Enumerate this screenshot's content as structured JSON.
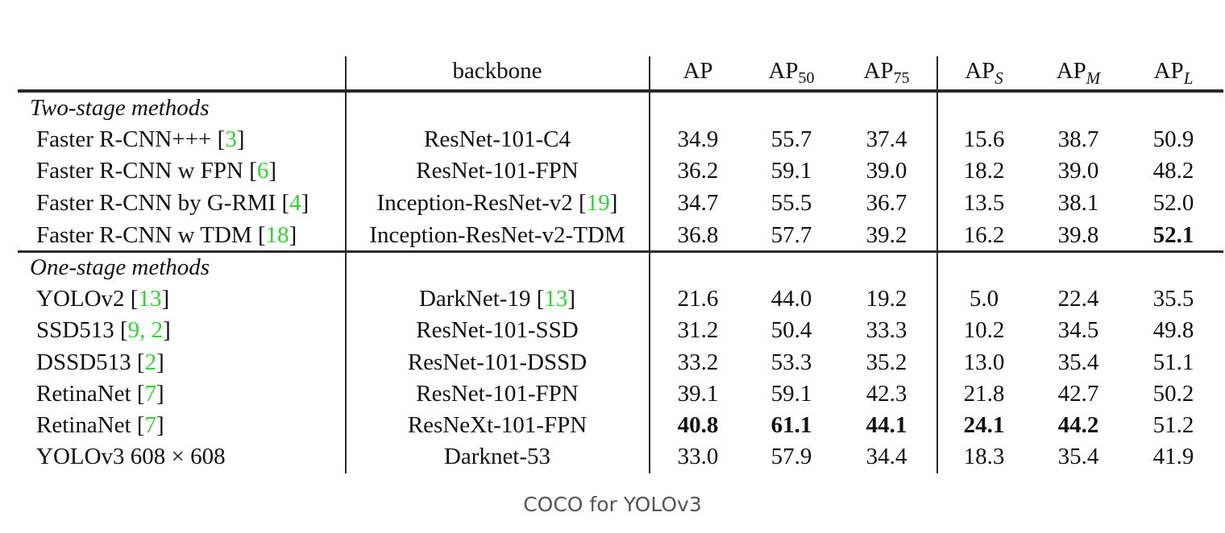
{
  "table": {
    "columns": [
      {
        "key": "method",
        "label": ""
      },
      {
        "key": "backbone",
        "label": "backbone"
      },
      {
        "key": "ap",
        "label": "AP",
        "sub": ""
      },
      {
        "key": "ap50",
        "label": "AP",
        "sub": "50"
      },
      {
        "key": "ap75",
        "label": "AP",
        "sub": "75"
      },
      {
        "key": "aps",
        "label": "AP",
        "sub": "S"
      },
      {
        "key": "apm",
        "label": "AP",
        "sub": "M"
      },
      {
        "key": "apl",
        "label": "AP",
        "sub": "L"
      }
    ],
    "groups": [
      {
        "title": "Two-stage methods",
        "rows": [
          {
            "method": "Faster R-CNN+++ ",
            "method_ref": "3",
            "backbone": "ResNet-101-C4",
            "backbone_ref": "",
            "values": [
              "34.9",
              "55.7",
              "37.4",
              "15.6",
              "38.7",
              "50.9"
            ],
            "bold": [
              false,
              false,
              false,
              false,
              false,
              false
            ]
          },
          {
            "method": "Faster R-CNN w FPN ",
            "method_ref": "6",
            "backbone": "ResNet-101-FPN",
            "backbone_ref": "",
            "values": [
              "36.2",
              "59.1",
              "39.0",
              "18.2",
              "39.0",
              "48.2"
            ],
            "bold": [
              false,
              false,
              false,
              false,
              false,
              false
            ]
          },
          {
            "method": "Faster R-CNN by G-RMI ",
            "method_ref": "4",
            "backbone": "Inception-ResNet-v2 ",
            "backbone_ref": "19",
            "values": [
              "34.7",
              "55.5",
              "36.7",
              "13.5",
              "38.1",
              "52.0"
            ],
            "bold": [
              false,
              false,
              false,
              false,
              false,
              false
            ]
          },
          {
            "method": "Faster R-CNN w TDM ",
            "method_ref": "18",
            "backbone": "Inception-ResNet-v2-TDM",
            "backbone_ref": "",
            "values": [
              "36.8",
              "57.7",
              "39.2",
              "16.2",
              "39.8",
              "52.1"
            ],
            "bold": [
              false,
              false,
              false,
              false,
              false,
              true
            ]
          }
        ]
      },
      {
        "title": "One-stage methods",
        "rows": [
          {
            "method": "YOLOv2 ",
            "method_ref": "13",
            "backbone": "DarkNet-19 ",
            "backbone_ref": "13",
            "values": [
              "21.6",
              "44.0",
              "19.2",
              "5.0",
              "22.4",
              "35.5"
            ],
            "bold": [
              false,
              false,
              false,
              false,
              false,
              false
            ]
          },
          {
            "method": "SSD513 ",
            "method_ref": "9, 2",
            "backbone": "ResNet-101-SSD",
            "backbone_ref": "",
            "values": [
              "31.2",
              "50.4",
              "33.3",
              "10.2",
              "34.5",
              "49.8"
            ],
            "bold": [
              false,
              false,
              false,
              false,
              false,
              false
            ]
          },
          {
            "method": "DSSD513 ",
            "method_ref": "2",
            "backbone": "ResNet-101-DSSD",
            "backbone_ref": "",
            "values": [
              "33.2",
              "53.3",
              "35.2",
              "13.0",
              "35.4",
              "51.1"
            ],
            "bold": [
              false,
              false,
              false,
              false,
              false,
              false
            ]
          },
          {
            "method": "RetinaNet ",
            "method_ref": "7",
            "backbone": "ResNet-101-FPN",
            "backbone_ref": "",
            "values": [
              "39.1",
              "59.1",
              "42.3",
              "21.8",
              "42.7",
              "50.2"
            ],
            "bold": [
              false,
              false,
              false,
              false,
              false,
              false
            ]
          },
          {
            "method": "RetinaNet ",
            "method_ref": "7",
            "backbone": "ResNeXt-101-FPN",
            "backbone_ref": "",
            "values": [
              "40.8",
              "61.1",
              "44.1",
              "24.1",
              "44.2",
              "51.2"
            ],
            "bold": [
              true,
              true,
              true,
              true,
              true,
              false
            ]
          },
          {
            "method": "YOLOv3 608 × 608",
            "method_ref": "",
            "backbone": "Darknet-53",
            "backbone_ref": "",
            "values": [
              "33.0",
              "57.9",
              "34.4",
              "18.3",
              "35.4",
              "41.9"
            ],
            "bold": [
              false,
              false,
              false,
              false,
              false,
              false
            ]
          }
        ]
      }
    ]
  },
  "caption": "COCO for YOLOv3",
  "colors": {
    "reference": "#2fd62f",
    "text": "#111111",
    "caption": "#555555"
  },
  "chart_data": {
    "type": "table",
    "title": "COCO for YOLOv3",
    "columns": [
      "method",
      "backbone",
      "AP",
      "AP50",
      "AP75",
      "APS",
      "APM",
      "APL"
    ],
    "rows": [
      [
        "Faster R-CNN+++ [3]",
        "ResNet-101-C4",
        34.9,
        55.7,
        37.4,
        15.6,
        38.7,
        50.9
      ],
      [
        "Faster R-CNN w FPN [6]",
        "ResNet-101-FPN",
        36.2,
        59.1,
        39.0,
        18.2,
        39.0,
        48.2
      ],
      [
        "Faster R-CNN by G-RMI [4]",
        "Inception-ResNet-v2 [19]",
        34.7,
        55.5,
        36.7,
        13.5,
        38.1,
        52.0
      ],
      [
        "Faster R-CNN w TDM [18]",
        "Inception-ResNet-v2-TDM",
        36.8,
        57.7,
        39.2,
        16.2,
        39.8,
        52.1
      ],
      [
        "YOLOv2 [13]",
        "DarkNet-19 [13]",
        21.6,
        44.0,
        19.2,
        5.0,
        22.4,
        35.5
      ],
      [
        "SSD513 [9, 2]",
        "ResNet-101-SSD",
        31.2,
        50.4,
        33.3,
        10.2,
        34.5,
        49.8
      ],
      [
        "DSSD513 [2]",
        "ResNet-101-DSSD",
        33.2,
        53.3,
        35.2,
        13.0,
        35.4,
        51.1
      ],
      [
        "RetinaNet [7]",
        "ResNet-101-FPN",
        39.1,
        59.1,
        42.3,
        21.8,
        42.7,
        50.2
      ],
      [
        "RetinaNet [7]",
        "ResNeXt-101-FPN",
        40.8,
        61.1,
        44.1,
        24.1,
        44.2,
        51.2
      ],
      [
        "YOLOv3 608 × 608",
        "Darknet-53",
        33.0,
        57.9,
        34.4,
        18.3,
        35.4,
        41.9
      ]
    ],
    "groups": {
      "Two-stage methods": [
        0,
        1,
        2,
        3
      ],
      "One-stage methods": [
        4,
        5,
        6,
        7,
        8,
        9
      ]
    }
  }
}
